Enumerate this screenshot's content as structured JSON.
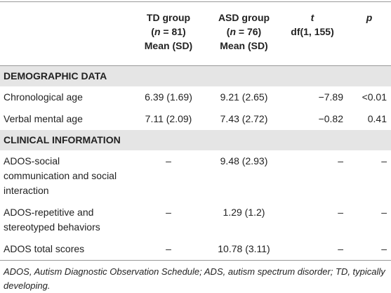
{
  "header": {
    "columns": [
      [],
      [
        [
          {
            "text": "TD group"
          }
        ],
        [
          {
            "text": "("
          },
          {
            "text": "n",
            "italic": true
          },
          {
            "text": " = 81)"
          }
        ],
        [
          {
            "text": "Mean (SD)"
          }
        ]
      ],
      [
        [
          {
            "text": "ASD group"
          }
        ],
        [
          {
            "text": "("
          },
          {
            "text": "n",
            "italic": true
          },
          {
            "text": " = 76)"
          }
        ],
        [
          {
            "text": "Mean (SD)"
          }
        ]
      ],
      [
        [
          {
            "text": "t",
            "italic": true
          }
        ],
        [
          {
            "text": "df(1, 155)"
          }
        ]
      ],
      [
        [
          {
            "text": "p",
            "italic": true
          }
        ]
      ]
    ]
  },
  "table": {
    "sections": [
      {
        "title": "DEMOGRAPHIC DATA",
        "rows": [
          [
            "Chronological age",
            "6.39 (1.69)",
            "9.21 (2.65)",
            "−7.89",
            "<0.01"
          ],
          [
            "Verbal mental age",
            "7.11 (2.09)",
            "7.43 (2.72)",
            "−0.82",
            "0.41"
          ]
        ]
      },
      {
        "title": "CLINICAL INFORMATION",
        "rows": [
          [
            "ADOS-social communication and social interaction",
            "–",
            "9.48 (2.93)",
            "–",
            "–"
          ],
          [
            "ADOS-repetitive and stereotyped behaviors",
            "–",
            "1.29 (1.2)",
            "–",
            "–"
          ],
          [
            "ADOS total scores",
            "–",
            "10.78 (3.11)",
            "–",
            "–"
          ]
        ]
      }
    ]
  },
  "footnote": "ADOS, Autism Diagnostic Observation Schedule; ADS, autism spectrum disorder; TD, typically developing."
}
